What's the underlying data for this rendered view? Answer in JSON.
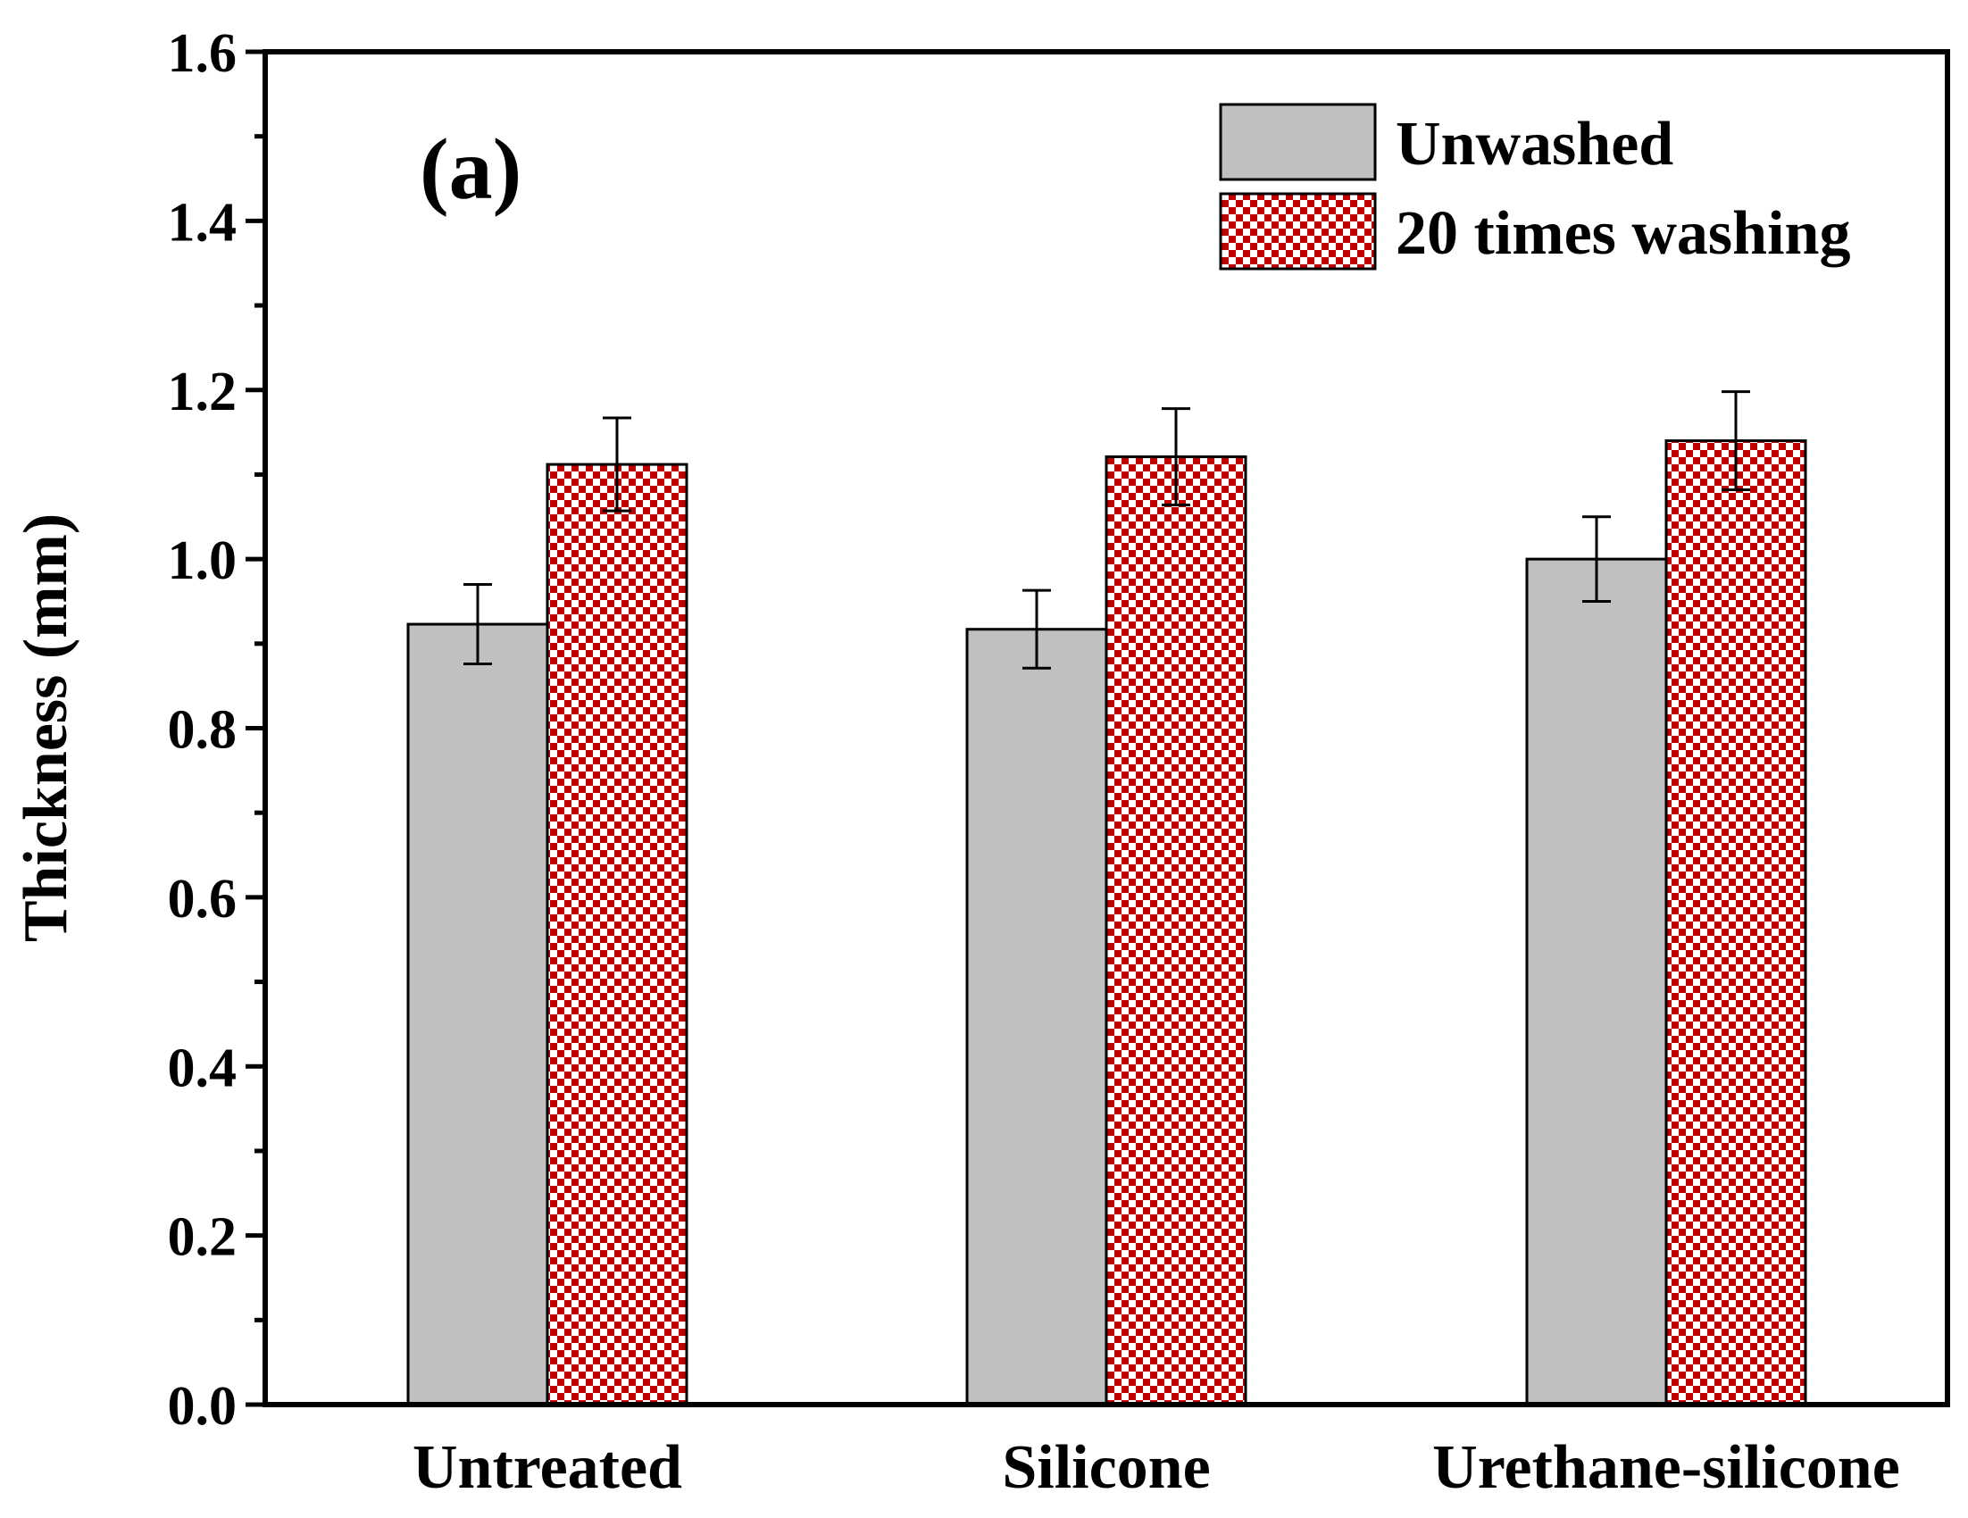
{
  "chart_data": {
    "type": "bar",
    "panel_label": "(a)",
    "ylabel": "Thickness (mm)",
    "ylim": [
      0,
      1.6
    ],
    "yticks": [
      "0.0",
      "0.2",
      "0.4",
      "0.6",
      "0.8",
      "1.0",
      "1.2",
      "1.4",
      "1.6"
    ],
    "categories": [
      "Untreated",
      "Silicone",
      "Urethane-silicone"
    ],
    "series": [
      {
        "name": "Unwashed",
        "values": [
          0.923,
          0.917,
          1.0
        ],
        "errors": [
          0.047,
          0.046,
          0.05
        ],
        "color": "#c0c0c0",
        "pattern": "solid"
      },
      {
        "name": "20 times washing",
        "values": [
          1.112,
          1.121,
          1.14
        ],
        "errors": [
          0.055,
          0.057,
          0.058
        ],
        "color": "#c00000",
        "pattern": "checker"
      }
    ],
    "legend_position": "top-right",
    "grid": false
  }
}
